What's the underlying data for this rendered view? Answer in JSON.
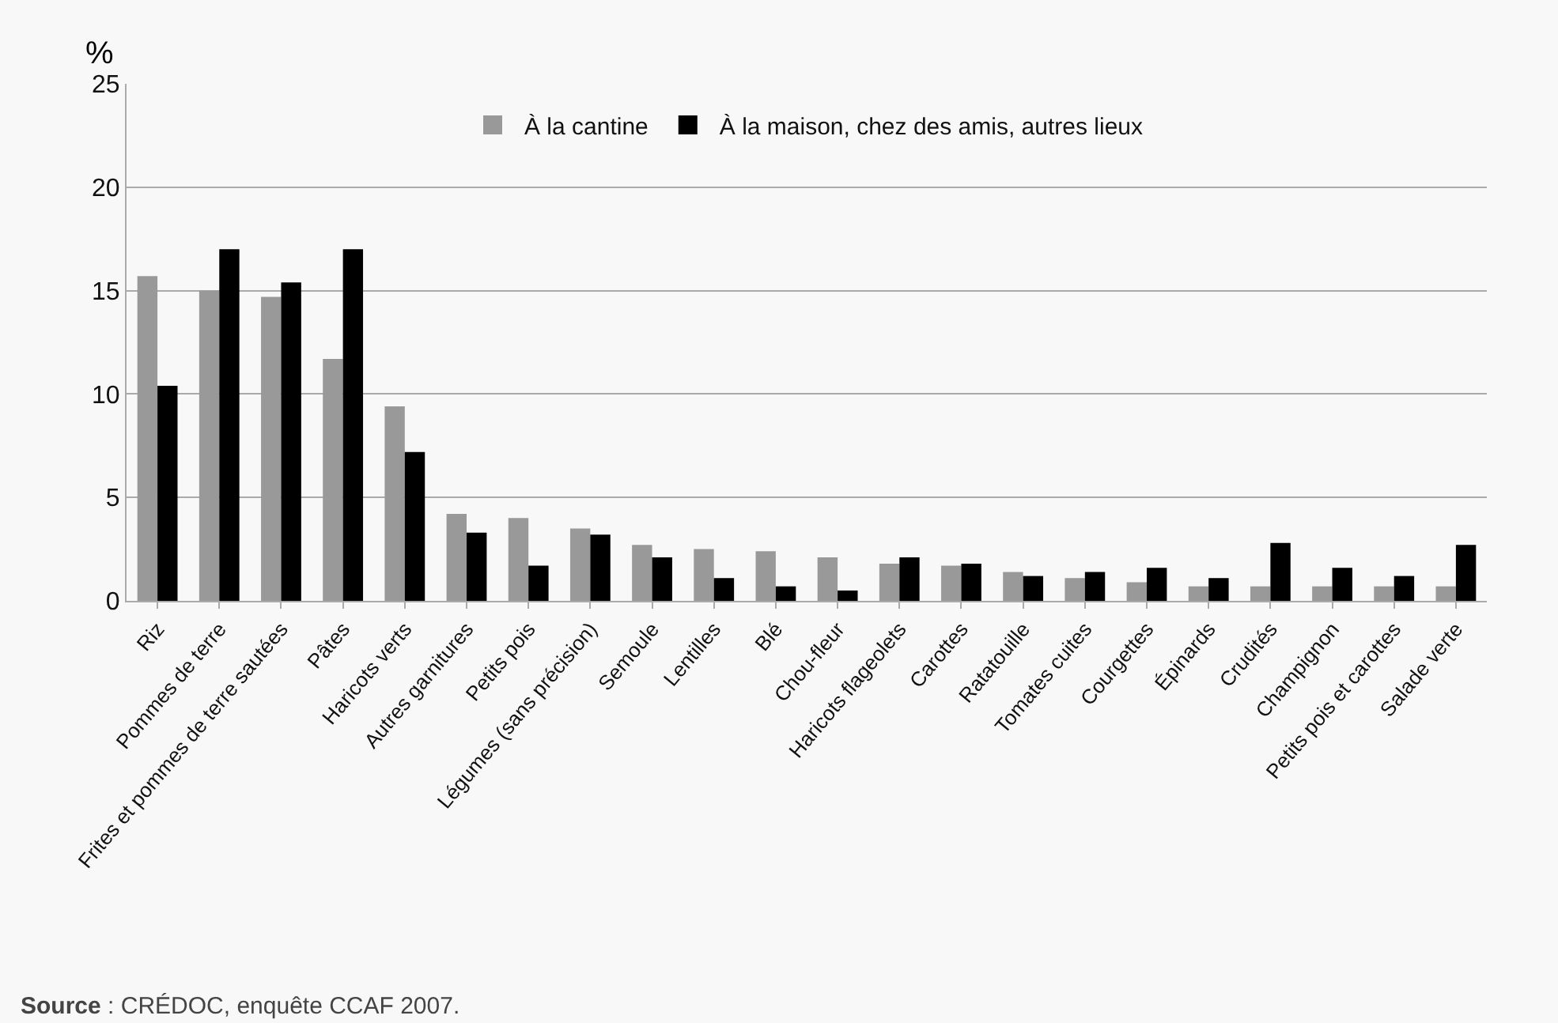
{
  "chart_data": {
    "type": "bar",
    "ylabel": "%",
    "categories": [
      "Riz",
      "Pommes de terre",
      "Frites et pommes de terre sautées",
      "Pâtes",
      "Haricots verts",
      "Autres garnitures",
      "Petits pois",
      "Légumes (sans précision)",
      "Semoule",
      "Lentilles",
      "Blé",
      "Chou-fleur",
      "Haricots flageolets",
      "Carottes",
      "Ratatouille",
      "Tomates cuites",
      "Courgettes",
      "Épinards",
      "Crudités",
      "Champignon",
      "Petits pois et carottes",
      "Salade verte"
    ],
    "series": [
      {
        "name": "À la cantine",
        "color": "#999999",
        "values": [
          15.7,
          15.0,
          14.7,
          11.7,
          9.4,
          4.2,
          4.0,
          3.5,
          2.7,
          2.5,
          2.4,
          2.1,
          1.8,
          1.7,
          1.4,
          1.1,
          0.9,
          0.7,
          0.7,
          0.7,
          0.7,
          0.7
        ]
      },
      {
        "name": "À la maison, chez des amis, autres lieux",
        "color": "#000000",
        "values": [
          10.4,
          17.0,
          15.4,
          17.0,
          7.2,
          3.3,
          1.7,
          3.2,
          2.1,
          1.1,
          0.7,
          0.5,
          2.1,
          1.8,
          1.2,
          1.4,
          1.6,
          1.1,
          2.8,
          1.6,
          1.2,
          2.7
        ]
      }
    ],
    "ylim": [
      0,
      25
    ],
    "yticks": [
      0,
      5,
      10,
      15,
      20,
      25
    ],
    "grid": "y",
    "legend": "top",
    "annotations": [
      "Source : CRÉDOC, enquête CCAF 2007."
    ]
  }
}
